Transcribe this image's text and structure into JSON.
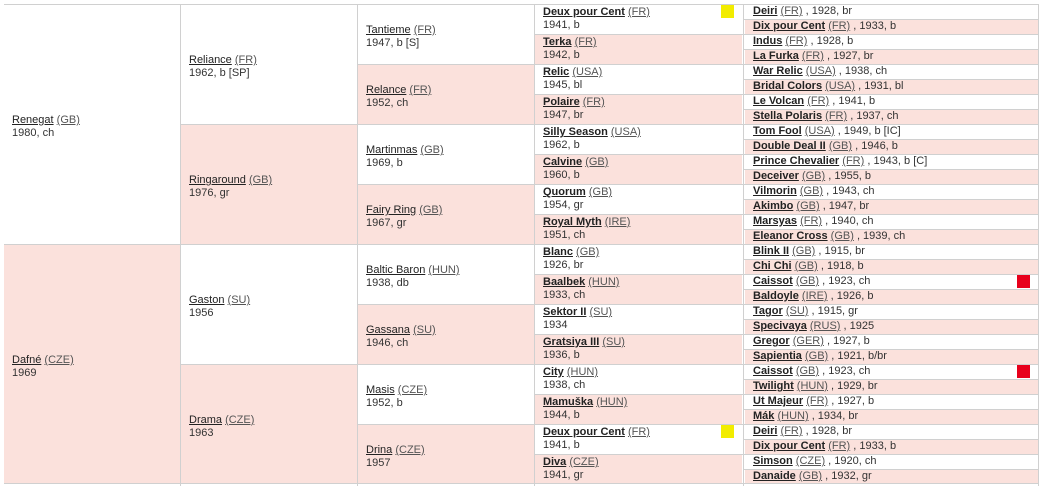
{
  "gen1": [
    {
      "name": "Renegat",
      "country": "(GB)",
      "info": "1980, ch"
    },
    {
      "name": "Dafné",
      "country": "(CZE)",
      "info": "1969"
    }
  ],
  "gen2": [
    {
      "name": "Reliance",
      "country": "(FR)",
      "info": "1962, b [SP]"
    },
    {
      "name": "Ringaround",
      "country": "(GB)",
      "info": "1976, gr"
    },
    {
      "name": "Gaston",
      "country": "(SU)",
      "info": "1956"
    },
    {
      "name": "Drama",
      "country": "(CZE)",
      "info": "1963"
    }
  ],
  "gen3": [
    {
      "name": "Tantieme",
      "country": "(FR)",
      "info": "1947, b [S]"
    },
    {
      "name": "Relance",
      "country": "(FR)",
      "info": "1952, ch"
    },
    {
      "name": "Martinmas",
      "country": "(GB)",
      "info": "1969, b"
    },
    {
      "name": "Fairy Ring",
      "country": "(GB)",
      "info": "1967, gr"
    },
    {
      "name": "Baltic Baron",
      "country": "(HUN)",
      "info": "1938, db"
    },
    {
      "name": "Gassana",
      "country": "(SU)",
      "info": "1946, ch"
    },
    {
      "name": "Masis",
      "country": "(CZE)",
      "info": "1952, b"
    },
    {
      "name": "Drina",
      "country": "(CZE)",
      "info": "1957"
    }
  ],
  "gen4": [
    {
      "name": "Deux pour Cent",
      "country": "(FR)",
      "info": "1941, b",
      "marker": "#f2ec00"
    },
    {
      "name": "Terka",
      "country": "(FR)",
      "info": "1942, b"
    },
    {
      "name": "Relic",
      "country": "(USA)",
      "info": "1945, bl"
    },
    {
      "name": "Polaire",
      "country": "(FR)",
      "info": "1947, br"
    },
    {
      "name": "Silly Season",
      "country": "(USA)",
      "info": "1962, b"
    },
    {
      "name": "Calvine",
      "country": "(GB)",
      "info": "1960, b"
    },
    {
      "name": "Quorum",
      "country": "(GB)",
      "info": "1954, gr"
    },
    {
      "name": "Royal Myth",
      "country": "(IRE)",
      "info": "1951, ch"
    },
    {
      "name": "Blanc",
      "country": "(GB)",
      "info": "1926, br"
    },
    {
      "name": "Baalbek",
      "country": "(HUN)",
      "info": "1933, ch"
    },
    {
      "name": "Sektor II",
      "country": "(SU)",
      "info": "1934"
    },
    {
      "name": "Gratsiya III",
      "country": "(SU)",
      "info": "1936, b"
    },
    {
      "name": "City",
      "country": "(HUN)",
      "info": "1938, ch"
    },
    {
      "name": "Mamuška",
      "country": "(HUN)",
      "info": "1944, b"
    },
    {
      "name": "Deux pour Cent",
      "country": "(FR)",
      "info": "1941, b",
      "marker": "#f2ec00"
    },
    {
      "name": "Diva",
      "country": "(CZE)",
      "info": "1941, gr"
    }
  ],
  "gen5": [
    {
      "name": "Deiri",
      "country": "(FR)",
      "info": ", 1928, br"
    },
    {
      "name": "Dix pour Cent",
      "country": "(FR)",
      "info": ", 1933, b"
    },
    {
      "name": "Indus",
      "country": "(FR)",
      "info": ", 1928, b"
    },
    {
      "name": "La Furka",
      "country": "(FR)",
      "info": ", 1927, br"
    },
    {
      "name": "War Relic",
      "country": "(USA)",
      "info": ", 1938, ch"
    },
    {
      "name": "Bridal Colors",
      "country": "(USA)",
      "info": ", 1931, bl"
    },
    {
      "name": "Le Volcan",
      "country": "(FR)",
      "info": ", 1941, b"
    },
    {
      "name": "Stella Polaris",
      "country": "(FR)",
      "info": ", 1937, ch"
    },
    {
      "name": "Tom Fool",
      "country": "(USA)",
      "info": ", 1949, b [IC]"
    },
    {
      "name": "Double Deal II",
      "country": "(GB)",
      "info": ", 1946, b"
    },
    {
      "name": "Prince Chevalier",
      "country": "(FR)",
      "info": ", 1943, b [C]"
    },
    {
      "name": "Deceiver",
      "country": "(GB)",
      "info": ", 1955, b"
    },
    {
      "name": "Vilmorin",
      "country": "(GB)",
      "info": ", 1943, ch"
    },
    {
      "name": "Akimbo",
      "country": "(GB)",
      "info": ", 1947, br"
    },
    {
      "name": "Marsyas",
      "country": "(FR)",
      "info": ", 1940, ch"
    },
    {
      "name": "Eleanor Cross",
      "country": "(GB)",
      "info": ", 1939, ch"
    },
    {
      "name": "Blink II",
      "country": "(GB)",
      "info": ", 1915, br"
    },
    {
      "name": "Chi Chi",
      "country": "(GB)",
      "info": ", 1918, b"
    },
    {
      "name": "Caissot",
      "country": "(GB)",
      "info": ", 1923, ch",
      "marker": "#e8001c"
    },
    {
      "name": "Baldoyle",
      "country": "(IRE)",
      "info": ", 1926, b"
    },
    {
      "name": "Tagor",
      "country": "(SU)",
      "info": ", 1915, gr"
    },
    {
      "name": "Specivaya",
      "country": "(RUS)",
      "info": ", 1925"
    },
    {
      "name": "Gregor",
      "country": "(GER)",
      "info": ", 1927, b"
    },
    {
      "name": "Sapientia",
      "country": "(GB)",
      "info": ", 1921, b/br"
    },
    {
      "name": "Caissot",
      "country": "(GB)",
      "info": ", 1923, ch",
      "marker": "#e8001c"
    },
    {
      "name": "Twilight",
      "country": "(HUN)",
      "info": ", 1929, br"
    },
    {
      "name": "Ut Majeur",
      "country": "(FR)",
      "info": ", 1927, b"
    },
    {
      "name": "Mák",
      "country": "(HUN)",
      "info": ", 1934, br"
    },
    {
      "name": "Deiri",
      "country": "(FR)",
      "info": ", 1928, br"
    },
    {
      "name": "Dix pour Cent",
      "country": "(FR)",
      "info": ", 1933, b"
    },
    {
      "name": "Simson",
      "country": "(CZE)",
      "info": ", 1920, ch"
    },
    {
      "name": "Danaide",
      "country": "(GB)",
      "info": ", 1932, gr"
    }
  ]
}
